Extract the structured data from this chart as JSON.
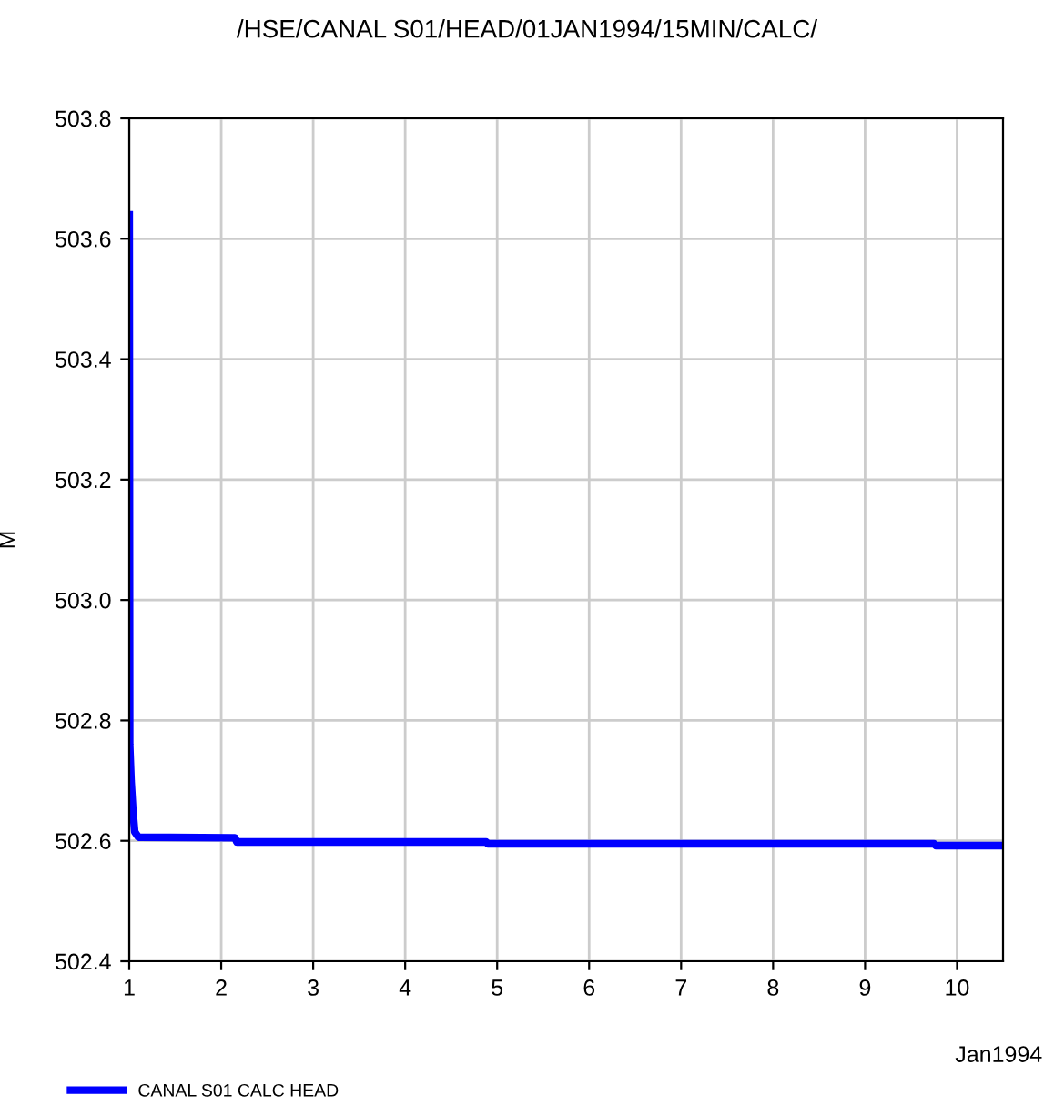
{
  "chart_data": {
    "type": "line",
    "title": "/HSE/CANAL S01/HEAD/01JAN1994/15MIN/CALC/",
    "xlabel": "Jan1994",
    "ylabel": "M",
    "x": [
      1.0,
      1.005,
      1.02,
      1.04,
      1.06,
      1.1,
      2.15,
      2.17,
      4.88,
      4.9,
      9.75,
      9.77,
      10.5
    ],
    "series": [
      {
        "name": "CANAL S01 CALC HEAD",
        "color": "#0000ff",
        "values": [
          503.64,
          502.76,
          502.7,
          502.65,
          502.615,
          502.606,
          502.605,
          502.598,
          502.598,
          502.595,
          502.595,
          502.592,
          502.592
        ]
      }
    ],
    "xlim": [
      1,
      10.5
    ],
    "xticks": [
      1,
      2,
      3,
      4,
      5,
      6,
      7,
      8,
      9,
      10
    ],
    "ylim": [
      502.4,
      503.8
    ],
    "yticks": [
      {
        "value": 502.4,
        "label": "502.4"
      },
      {
        "value": 502.6,
        "label": "502.6"
      },
      {
        "value": 502.8,
        "label": "502.8"
      },
      {
        "value": 503.0,
        "label": "503.0"
      },
      {
        "value": 503.2,
        "label": "503.2"
      },
      {
        "value": 503.4,
        "label": "503.4"
      },
      {
        "value": 503.6,
        "label": "503.6"
      },
      {
        "value": 503.8,
        "label": "503.8"
      }
    ],
    "grid": true,
    "legend": "bottom left",
    "marker": "none",
    "line_style": "solid"
  }
}
